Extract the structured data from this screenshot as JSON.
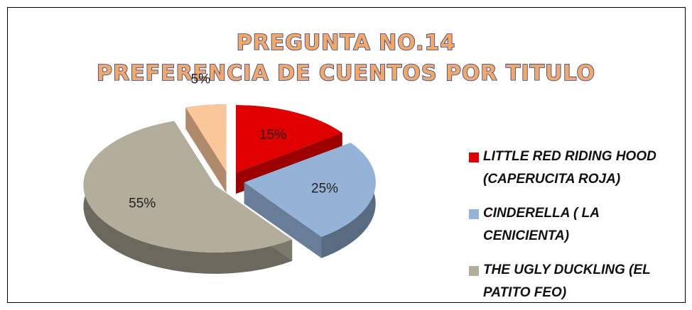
{
  "chart_data": {
    "type": "pie",
    "title": "PREGUNTA NO.14",
    "subtitle": "PREFERENCIA DE CUENTOS POR TITULO",
    "categories": [
      "LITTLE RED RIDING HOOD (CAPERUCITA ROJA)",
      "CINDERELLA ( LA CENICIENTA)",
      "THE UGLY DUCKLING (EL PATITO FEO)",
      null
    ],
    "values": [
      15,
      25,
      55,
      5
    ],
    "value_labels": [
      "15%",
      "25%",
      "55%",
      "5%"
    ],
    "colors": [
      "#e00000",
      "#95b3d7",
      "#b3ae9c",
      "#fac79a"
    ],
    "legend": "right"
  }
}
